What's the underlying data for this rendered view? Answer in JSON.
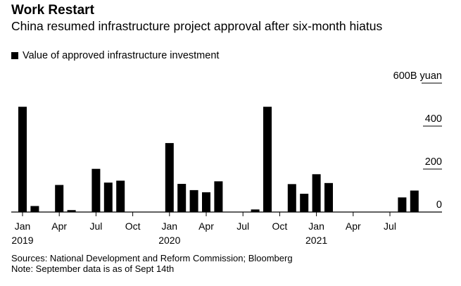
{
  "header": {
    "title": "Work Restart",
    "subtitle": "China resumed infrastructure project approval after six-month hiatus"
  },
  "legend": {
    "label": "Value of approved infrastructure investment"
  },
  "footer": {
    "source": "Sources: National Development and Reform Commission; Bloomberg",
    "note": "Note: September data is as of Sept 14th"
  },
  "colors": {
    "bar": "#000000",
    "background": "#ffffff"
  },
  "chart_data": {
    "type": "bar",
    "title": "Work Restart",
    "subtitle": "China resumed infrastructure project approval after six-month hiatus",
    "xlabel": "",
    "ylabel": "",
    "unit_label": "600B yuan",
    "ylim": [
      0,
      600
    ],
    "yticks": [
      {
        "value": 0,
        "label": "0"
      },
      {
        "value": 200,
        "label": "200"
      },
      {
        "value": 400,
        "label": "400"
      },
      {
        "value": 600,
        "label": "600B yuan"
      }
    ],
    "grid": false,
    "legend": "top-left",
    "series": [
      {
        "name": "Value of approved infrastructure investment",
        "categories": [
          "2019-01",
          "2019-02",
          "2019-03",
          "2019-04",
          "2019-05",
          "2019-06",
          "2019-07",
          "2019-08",
          "2019-09",
          "2019-10",
          "2019-11",
          "2019-12",
          "2020-01",
          "2020-02",
          "2020-03",
          "2020-04",
          "2020-05",
          "2020-06",
          "2020-07",
          "2020-08",
          "2020-09",
          "2020-10",
          "2020-11",
          "2020-12",
          "2021-01",
          "2021-02",
          "2021-03",
          "2021-04",
          "2021-05",
          "2021-06",
          "2021-07",
          "2021-08",
          "2021-09"
        ],
        "values": [
          490,
          28,
          0,
          126,
          9,
          0,
          201,
          137,
          146,
          0,
          0,
          0,
          321,
          131,
          102,
          92,
          143,
          0,
          0,
          12,
          490,
          0,
          130,
          85,
          176,
          135,
          0,
          0,
          0,
          0,
          0,
          68,
          100
        ]
      }
    ],
    "x_tick_labels": [
      {
        "index": 0,
        "label": "Jan",
        "year": "2019"
      },
      {
        "index": 3,
        "label": "Apr"
      },
      {
        "index": 6,
        "label": "Jul"
      },
      {
        "index": 9,
        "label": "Oct"
      },
      {
        "index": 12,
        "label": "Jan",
        "year": "2020"
      },
      {
        "index": 15,
        "label": "Apr"
      },
      {
        "index": 18,
        "label": "Jul"
      },
      {
        "index": 21,
        "label": "Oct"
      },
      {
        "index": 24,
        "label": "Jan",
        "year": "2021"
      },
      {
        "index": 27,
        "label": "Apr"
      },
      {
        "index": 30,
        "label": "Jul"
      }
    ]
  }
}
